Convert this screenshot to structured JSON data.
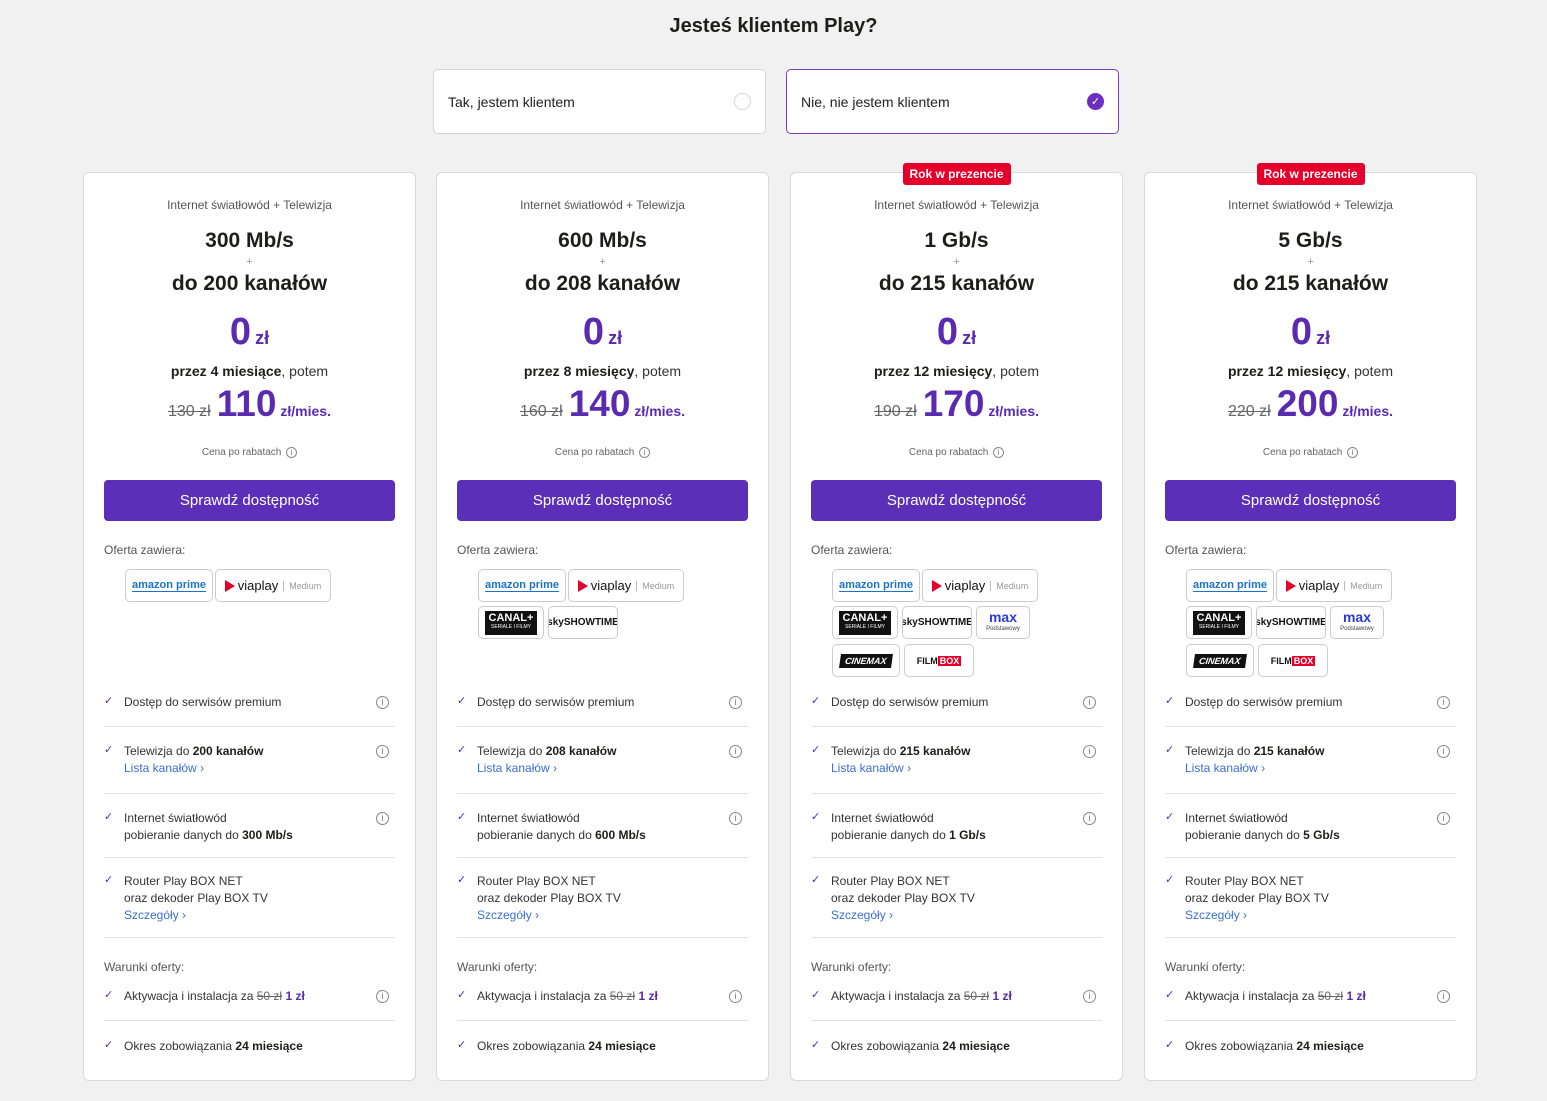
{
  "header": {
    "title": "Jesteś klientem Play?"
  },
  "choices": [
    {
      "label": "Tak, jestem klientem",
      "selected": false
    },
    {
      "label": "Nie, nie jestem klientem",
      "selected": true,
      "check": "✓"
    }
  ],
  "common": {
    "category": "Internet światłowód + Telewizja",
    "plus": "+",
    "promo_value": "0",
    "promo_currency": "zł",
    "period_suffix": ", potem",
    "unit": "zł/mies.",
    "after_discount": "Cena po rabatach",
    "button": "Sprawdź dostępność",
    "contains": "Oferta zawiera:",
    "terms": "Warunki oferty:",
    "feat_premium": "Dostęp do serwisów premium",
    "feat_tv_prefix": "Telewizja do ",
    "channel_list": "Lista kanałów",
    "feat_net_line1": "Internet światłowód",
    "feat_net_prefix": "pobieranie danych do ",
    "router_line1": "Router Play BOX NET",
    "router_line2": "oraz dekoder Play BOX TV",
    "details": "Szczegóły",
    "activation_prefix": "Aktywacja i instalacja za ",
    "activation_old": "50 zł",
    "activation_new": "1 zł",
    "commitment_prefix": "Okres zobowiązania ",
    "commitment_value": "24 miesiące",
    "info": "i",
    "chevron": "›",
    "check": "✓"
  },
  "logos_text": {
    "amazon": "amazon prime",
    "viaplay": "viaplay",
    "viaplay_tier": "Medium",
    "canal": "CANAL+",
    "canal_sub": "SERIALE I FILMY",
    "sky": "skySHOWTIME",
    "max": "max",
    "max_sub": "Podstawowy",
    "cinemax": "CINEMAX",
    "filmbox_a": "FILM",
    "filmbox_b": "BOX"
  },
  "plans": [
    {
      "badge": "",
      "speed": "300 Mb/s",
      "channels": "do 200 kanałów",
      "period": "przez 4 miesiące",
      "old_price": "130 zł",
      "new_price": "110",
      "tv_count": "200 kanałów",
      "net_speed": "300 Mb/s"
    },
    {
      "badge": "",
      "speed": "600 Mb/s",
      "channels": "do 208 kanałów",
      "period": "przez 8 miesięcy",
      "old_price": "160 zł",
      "new_price": "140",
      "tv_count": "208 kanałów",
      "net_speed": "600 Mb/s"
    },
    {
      "badge": "Rok w prezencie",
      "speed": "1 Gb/s",
      "channels": "do 215 kanałów",
      "period": "przez 12 miesięcy",
      "old_price": "190 zł",
      "new_price": "170",
      "tv_count": "215 kanałów",
      "net_speed": "1 Gb/s"
    },
    {
      "badge": "Rok w prezencie",
      "speed": "5 Gb/s",
      "channels": "do 215 kanałów",
      "period": "przez 12 miesięcy",
      "old_price": "220 zł",
      "new_price": "200",
      "tv_count": "215 kanałów",
      "net_speed": "5 Gb/s"
    }
  ]
}
